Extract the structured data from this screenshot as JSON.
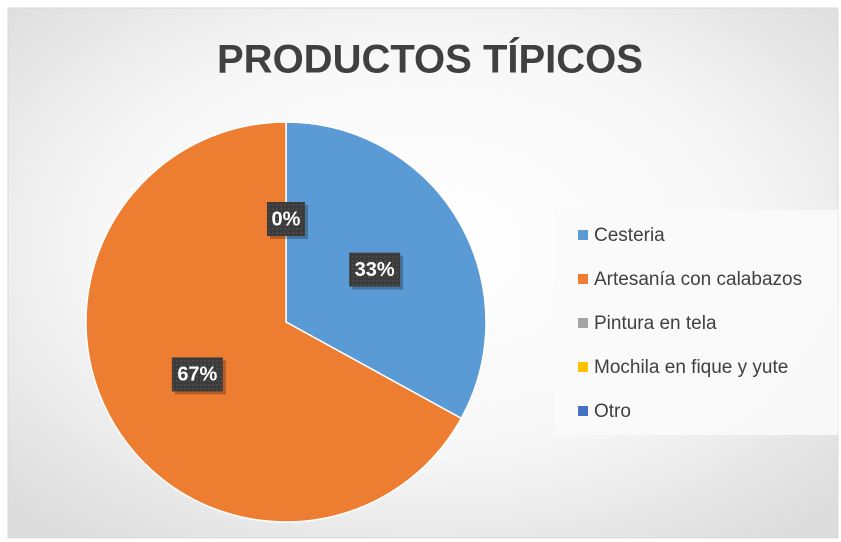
{
  "chart_data": {
    "type": "pie",
    "title": "PRODUCTOS TÍPICOS",
    "categories": [
      "Cesteria",
      "Artesanía con calabazos",
      "Pintura en tela",
      "Mochila en fique y yute",
      "Otro"
    ],
    "values": [
      33,
      67,
      0,
      0,
      0
    ],
    "value_labels": [
      "33%",
      "67%",
      "0%",
      null,
      null
    ],
    "colors": [
      "#5b9bd5",
      "#ed7d31",
      "#a5a5a5",
      "#ffc000",
      "#4472c4"
    ],
    "legend": "right"
  }
}
